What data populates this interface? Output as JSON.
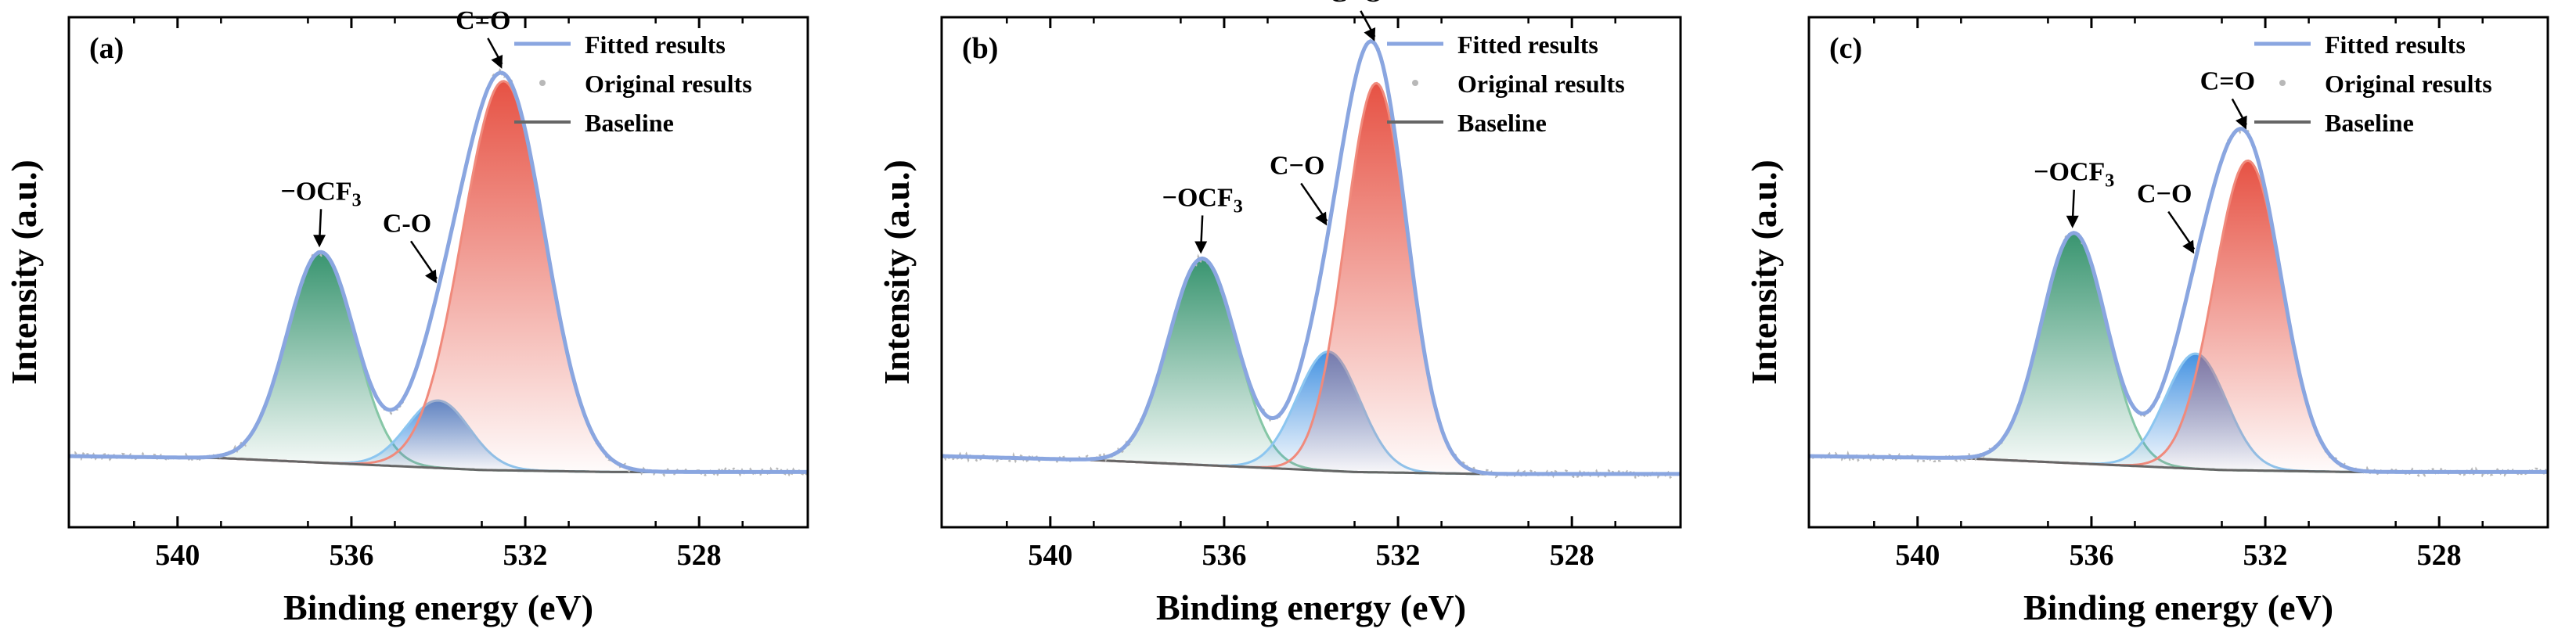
{
  "chart_data": [
    {
      "panel_label": "(a)",
      "type": "line",
      "xlabel": "Binding energy (eV)",
      "ylabel": "Intensity (a.u.)",
      "xlim": [
        542.5,
        525.5
      ],
      "xticks": [
        540,
        536,
        532,
        528
      ],
      "ylim": [
        -0.12,
        1.05
      ],
      "baseline": {
        "x": [
          542.5,
          539,
          536,
          533,
          530,
          525.5
        ],
        "y": [
          0.0,
          -0.005,
          -0.02,
          -0.035,
          -0.04,
          -0.04
        ]
      },
      "peaks": [
        {
          "name": "-OCF3",
          "label": "−OCF",
          "label_sub": "3",
          "center": 536.7,
          "height": 0.53,
          "sigma": 0.78
        },
        {
          "name": "C-O",
          "label": "C-O",
          "label_sub": "",
          "center": 534.0,
          "height": 0.17,
          "sigma": 0.72
        },
        {
          "name": "C=O",
          "label": "C=O",
          "label_sub": "",
          "center": 532.5,
          "height": 0.98,
          "sigma": 0.95
        }
      ],
      "legend": [
        "Fitted results",
        "Original results",
        "Baseline"
      ]
    },
    {
      "panel_label": "(b)",
      "type": "line",
      "xlabel": "Binding energy (eV)",
      "ylabel": "Intensity (a.u.)",
      "xlim": [
        542.5,
        525.5
      ],
      "xticks": [
        540,
        536,
        532,
        528
      ],
      "ylim": [
        -0.12,
        1.05
      ],
      "baseline": {
        "x": [
          542.5,
          539,
          536,
          533,
          530,
          525.5
        ],
        "y": [
          0.0,
          -0.01,
          -0.025,
          -0.04,
          -0.045,
          -0.045
        ]
      },
      "peaks": [
        {
          "name": "-OCF3",
          "label": "−OCF",
          "label_sub": "3",
          "center": 536.5,
          "height": 0.52,
          "sigma": 0.78
        },
        {
          "name": "C-O",
          "label": "C−O",
          "label_sub": "",
          "center": 533.6,
          "height": 0.3,
          "sigma": 0.72
        },
        {
          "name": "C=O",
          "label": "C=O",
          "label_sub": "",
          "center": 532.5,
          "height": 0.98,
          "sigma": 0.72
        }
      ],
      "legend": [
        "Fitted results",
        "Original results",
        "Baseline"
      ]
    },
    {
      "panel_label": "(c)",
      "type": "line",
      "xlabel": "Binding energy (eV)",
      "ylabel": "Intensity (a.u.)",
      "xlim": [
        542.5,
        525.5
      ],
      "xticks": [
        540,
        536,
        532,
        528
      ],
      "ylim": [
        -0.12,
        1.05
      ],
      "baseline": {
        "x": [
          542.5,
          539,
          536,
          533,
          530,
          525.5
        ],
        "y": [
          0.0,
          -0.005,
          -0.02,
          -0.035,
          -0.04,
          -0.04
        ]
      },
      "peaks": [
        {
          "name": "-OCF3",
          "label": "−OCF",
          "label_sub": "3",
          "center": 536.4,
          "height": 0.58,
          "sigma": 0.75
        },
        {
          "name": "C-O",
          "label": "C−O",
          "label_sub": "",
          "center": 533.6,
          "height": 0.29,
          "sigma": 0.7
        },
        {
          "name": "C=O",
          "label": "C=O",
          "label_sub": "",
          "center": 532.4,
          "height": 0.78,
          "sigma": 0.78
        }
      ],
      "legend": [
        "Fitted results",
        "Original results",
        "Baseline"
      ]
    }
  ],
  "colors": {
    "fitted": "#8aa6e0",
    "original": "#b8b8b8",
    "baseline": "#666666",
    "ocf3_top": "#2e8f68",
    "co_top": "#3b8de0",
    "c_eq_o_top": "#e5493a",
    "ocf3_line": "#86c7a6",
    "co_line": "#8cc6f0",
    "c_eq_o_line": "#f08a7c"
  }
}
